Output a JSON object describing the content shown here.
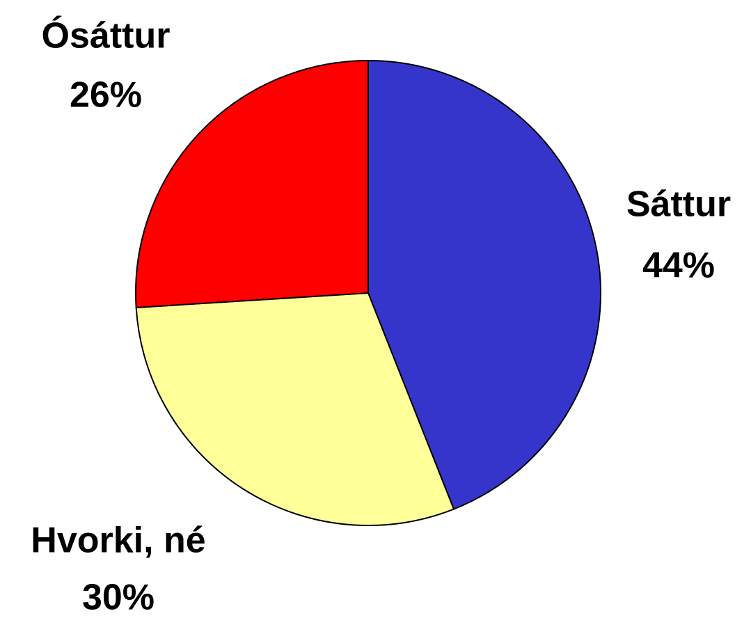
{
  "chart_data": {
    "type": "pie",
    "categories": [
      "Sáttur",
      "Hvorki, né",
      "Ósáttur"
    ],
    "values": [
      44,
      30,
      26
    ],
    "value_labels": [
      "44%",
      "30%",
      "26%"
    ],
    "colors": [
      "#3535cc",
      "#ffff99",
      "#ff0000"
    ]
  }
}
